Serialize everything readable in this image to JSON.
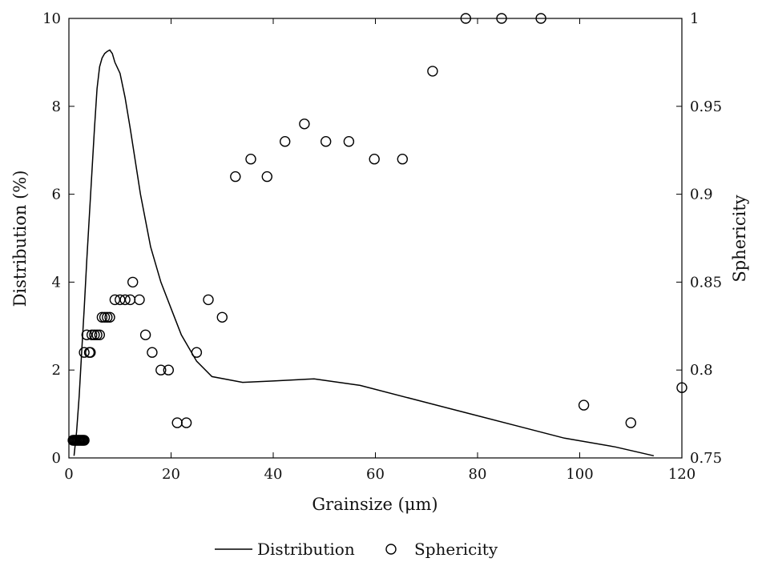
{
  "chart_data": {
    "type": "line",
    "title": "",
    "xlabel": "Grainsize (μm)",
    "ylabel": "Distribution (%)",
    "y2label": "Sphericity",
    "xlim": [
      0,
      120
    ],
    "ylim": [
      0,
      10
    ],
    "y2lim": [
      0.75,
      1.0
    ],
    "xticks": [
      "0",
      "20",
      "40",
      "60",
      "80",
      "100",
      "120"
    ],
    "yticks": [
      "0",
      "2",
      "4",
      "6",
      "8",
      "10"
    ],
    "y2ticks": [
      "0.75",
      "0.8",
      "0.85",
      "0.9",
      "0.95",
      "1"
    ],
    "grid": false,
    "legend": {
      "position": "bottom-center",
      "entries": [
        {
          "label": "Distribution",
          "marker": "line"
        },
        {
          "label": "Sphericity",
          "marker": "open-circle"
        }
      ]
    },
    "series": [
      {
        "name": "Distribution",
        "axis": "left",
        "style": "line",
        "color": "#000000",
        "x": [
          1,
          1.5,
          2,
          2.5,
          3,
          3.5,
          4,
          4.5,
          5,
          5.5,
          6,
          6.5,
          7,
          7.5,
          8,
          8.5,
          9,
          10,
          11,
          12,
          14,
          16,
          18,
          20,
          22,
          25,
          28,
          34,
          40,
          48,
          57,
          67,
          77,
          87,
          97,
          107,
          114.5
        ],
        "y": [
          0.05,
          0.6,
          1.4,
          2.4,
          3.4,
          4.5,
          5.5,
          6.5,
          7.5,
          8.4,
          8.9,
          9.1,
          9.2,
          9.25,
          9.28,
          9.2,
          9.0,
          8.75,
          8.2,
          7.5,
          6.0,
          4.8,
          4.0,
          3.4,
          2.8,
          2.2,
          1.85,
          1.72,
          1.75,
          1.8,
          1.65,
          1.35,
          1.05,
          0.75,
          0.45,
          0.25,
          0.05
        ]
      },
      {
        "name": "Sphericity",
        "axis": "right",
        "style": "open-circle",
        "color": "#000000",
        "x": [
          0.8,
          1.0,
          1.2,
          1.4,
          1.6,
          1.8,
          2.0,
          2.2,
          2.4,
          2.6,
          2.8,
          3.0,
          3.0,
          3.5,
          4.0,
          4.2,
          4.5,
          5.0,
          5.5,
          6.0,
          6.5,
          7.0,
          7.5,
          8.0,
          9.0,
          10.0,
          11.0,
          12.0,
          12.5,
          13.8,
          15.0,
          16.3,
          18.0,
          19.5,
          21.2,
          23.0,
          25.0,
          27.3,
          30.0,
          32.6,
          35.6,
          38.8,
          42.3,
          46.1,
          50.3,
          54.8,
          59.8,
          65.3,
          71.2,
          77.7,
          84.7,
          92.4,
          100.8,
          110.0,
          120.0
        ],
        "y": [
          0.76,
          0.76,
          0.76,
          0.76,
          0.76,
          0.76,
          0.76,
          0.76,
          0.76,
          0.76,
          0.76,
          0.76,
          0.81,
          0.82,
          0.81,
          0.81,
          0.82,
          0.82,
          0.82,
          0.82,
          0.83,
          0.83,
          0.83,
          0.83,
          0.84,
          0.84,
          0.84,
          0.84,
          0.85,
          0.84,
          0.82,
          0.81,
          0.8,
          0.8,
          0.77,
          0.77,
          0.81,
          0.84,
          0.83,
          0.91,
          0.92,
          0.91,
          0.93,
          0.94,
          0.93,
          0.93,
          0.92,
          0.92,
          0.97,
          1.0,
          1.0,
          1.0,
          0.78,
          0.77,
          0.79
        ]
      }
    ]
  }
}
